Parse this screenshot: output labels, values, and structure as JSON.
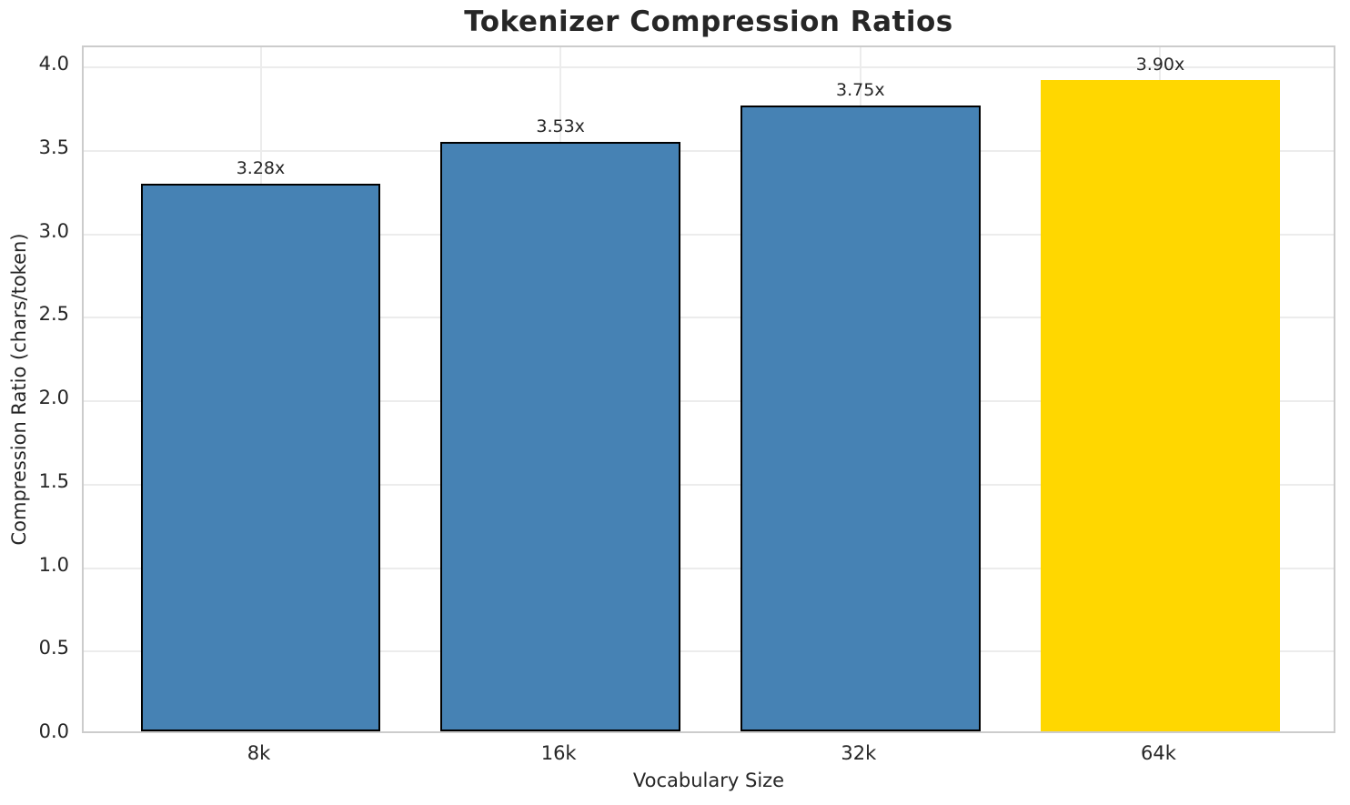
{
  "chart_data": {
    "type": "bar",
    "title": "Tokenizer Compression Ratios",
    "xlabel": "Vocabulary Size",
    "ylabel": "Compression Ratio (chars/token)",
    "categories": [
      "8k",
      "16k",
      "32k",
      "64k"
    ],
    "values": [
      3.28,
      3.53,
      3.75,
      3.9
    ],
    "value_labels": [
      "3.28x",
      "3.53x",
      "3.75x",
      "3.90x"
    ],
    "yticks": [
      0.0,
      0.5,
      1.0,
      1.5,
      2.0,
      2.5,
      3.0,
      3.5,
      4.0
    ],
    "ytick_labels": [
      "0.0",
      "0.5",
      "1.0",
      "1.5",
      "2.0",
      "2.5",
      "3.0",
      "3.5",
      "4.0"
    ],
    "ylim": [
      0,
      4.12
    ],
    "grid": true,
    "legend": "none",
    "bar_colors": [
      "#4682B4",
      "#4682B4",
      "#4682B4",
      "#FFD700"
    ],
    "bar_edge_colors": [
      "#000000",
      "#000000",
      "#000000",
      "none"
    ],
    "highlight_index": 3,
    "colors": {
      "bar_default": "#4682B4",
      "bar_highlight": "#FFD700",
      "bar_edge": "#000000",
      "grid": "#ececec",
      "spine": "#cccccc",
      "text": "#262626"
    }
  }
}
